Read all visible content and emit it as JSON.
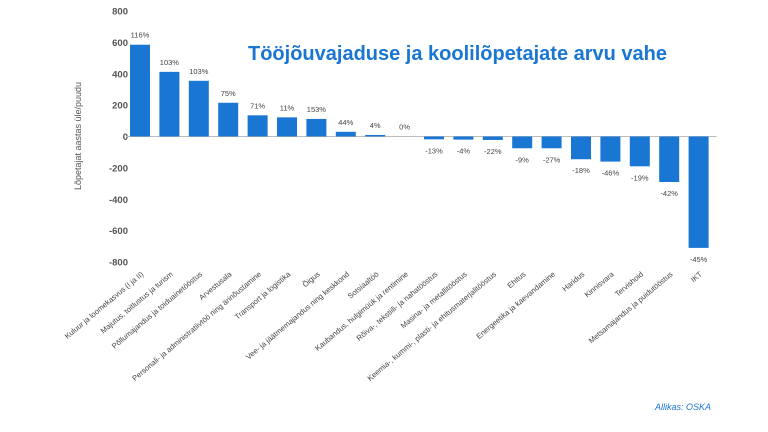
{
  "chart_data": {
    "type": "bar",
    "title": "Tööjõuvajaduse ja koolilõpetajate arvu vahe",
    "ylabel": "Lõpetajat aastas üle/puudu",
    "xlabel": "",
    "ylim": [
      -800,
      800
    ],
    "yticks": [
      800,
      600,
      400,
      200,
      0,
      -200,
      -400,
      -600,
      -800
    ],
    "ytick_labels": [
      "800",
      "600",
      "400",
      "200",
      "0",
      "-200",
      "-400",
      "-600",
      "-800"
    ],
    "categories": [
      "Kuluur ja loomekasvus (I ja II)",
      "Majutus, toitlustus ja turism",
      "Põllumajandus ja toiduainetööstus",
      "Arvestusala",
      "Personali- ja administratiivtöö ning ärinõustamine",
      "Transport ja logistika",
      "Õigus",
      "Vee- ja jäätmemajandus ning keskkond",
      "Sotsiaaltöö",
      "Kaubandus, hulgimüük ja rentimine",
      "Rõiva-, tekstiili- ja nahatööstus",
      "Masina- ja metallitööstus",
      "Keemia-, kummi-, plasti- ja ehitusmaterjalitööstus",
      "Ehitus",
      "Energeetika ja kaevandamine",
      "Haridus",
      "Kinnisvara",
      "Tervishoid",
      "Metsamajandus ja puidutööstus",
      "IKT"
    ],
    "values": [
      585,
      412,
      355,
      215,
      135,
      122,
      112,
      30,
      10,
      0,
      -18,
      -20,
      -22,
      -75,
      -75,
      -145,
      -160,
      -190,
      -290,
      -710
    ],
    "data_labels": [
      "116%",
      "103%",
      "103%",
      "75%",
      "71%",
      "11%",
      "153%",
      "44%",
      "4%",
      "0%",
      "-13%",
      "-4%",
      "-22%",
      "-9%",
      "-27%",
      "-18%",
      "-46%",
      "-19%",
      "-42%",
      "-45%"
    ],
    "bar_color": "#1976d2",
    "grid": false,
    "legend": "none"
  },
  "source_label": "Allikas: OSKA"
}
